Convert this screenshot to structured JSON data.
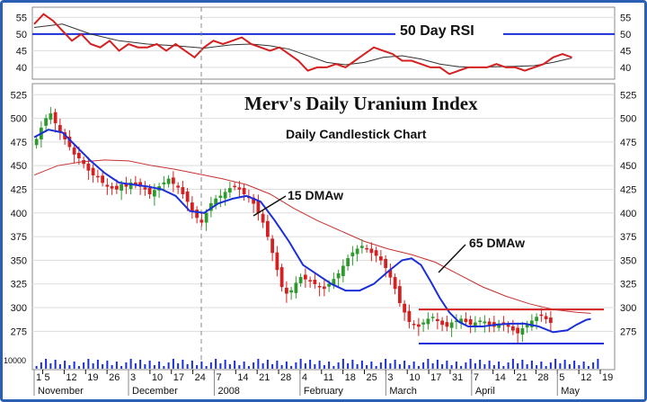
{
  "chart_data": {
    "type": "candlestick",
    "title": "Merv's Daily Uranium Index",
    "subtitle": "Daily Candlestick Chart",
    "colors": {
      "up": "#2e9a2e",
      "down": "#d42020",
      "ma15": "#1a2fd8",
      "ma65": "#c83030",
      "rsi": "#d42020",
      "rsi_signal": "#333333",
      "level_line": "#1a2fd8",
      "frame": "#2b5fb4"
    },
    "rsi_panel": {
      "title": "50 Day RSI",
      "ylim": [
        37,
        57
      ],
      "y_ticks": [
        40,
        45,
        50,
        55
      ],
      "reference_level": 50,
      "rsi": [
        [
          0,
          53
        ],
        [
          2,
          56
        ],
        [
          4,
          54
        ],
        [
          6,
          51
        ],
        [
          8,
          48
        ],
        [
          10,
          50
        ],
        [
          12,
          47
        ],
        [
          14,
          46
        ],
        [
          16,
          48
        ],
        [
          18,
          45
        ],
        [
          20,
          47
        ],
        [
          22,
          46
        ],
        [
          24,
          46
        ],
        [
          26,
          47
        ],
        [
          28,
          45
        ],
        [
          30,
          47
        ],
        [
          32,
          45
        ],
        [
          34,
          43
        ],
        [
          36,
          46
        ],
        [
          38,
          48
        ],
        [
          40,
          47
        ],
        [
          42,
          48
        ],
        [
          44,
          49
        ],
        [
          46,
          47
        ],
        [
          48,
          46
        ],
        [
          50,
          45
        ],
        [
          52,
          46
        ],
        [
          54,
          44
        ],
        [
          56,
          42
        ],
        [
          58,
          39
        ],
        [
          60,
          40
        ],
        [
          62,
          40
        ],
        [
          64,
          41
        ],
        [
          66,
          40
        ],
        [
          68,
          42
        ],
        [
          70,
          44
        ],
        [
          72,
          46
        ],
        [
          74,
          45
        ],
        [
          76,
          44
        ],
        [
          78,
          42
        ],
        [
          80,
          42
        ],
        [
          82,
          41
        ],
        [
          84,
          40
        ],
        [
          86,
          40
        ],
        [
          88,
          38
        ],
        [
          90,
          39
        ],
        [
          92,
          40
        ],
        [
          94,
          40
        ],
        [
          96,
          40
        ],
        [
          98,
          41
        ],
        [
          100,
          40
        ],
        [
          102,
          40
        ],
        [
          104,
          39
        ],
        [
          106,
          40
        ],
        [
          108,
          41
        ],
        [
          110,
          43
        ],
        [
          112,
          44
        ],
        [
          114,
          43
        ]
      ],
      "signal": [
        [
          0,
          52
        ],
        [
          6,
          53
        ],
        [
          12,
          50
        ],
        [
          18,
          48
        ],
        [
          24,
          47
        ],
        [
          30,
          46.5
        ],
        [
          36,
          45.8
        ],
        [
          42,
          46.8
        ],
        [
          46,
          47
        ],
        [
          50,
          46.5
        ],
        [
          54,
          45.5
        ],
        [
          58,
          43.5
        ],
        [
          62,
          41.5
        ],
        [
          66,
          40.8
        ],
        [
          70,
          41.5
        ],
        [
          74,
          43
        ],
        [
          78,
          43.5
        ],
        [
          82,
          42.5
        ],
        [
          86,
          41
        ],
        [
          90,
          40.2
        ],
        [
          94,
          40
        ],
        [
          98,
          40.2
        ],
        [
          102,
          40.3
        ],
        [
          106,
          40.5
        ],
        [
          110,
          41.5
        ],
        [
          114,
          42.8
        ]
      ]
    },
    "price_panel": {
      "ylim": [
        262,
        530
      ],
      "y_ticks": [
        275,
        300,
        325,
        350,
        375,
        400,
        425,
        450,
        475,
        500,
        525
      ],
      "closes": [
        478,
        490,
        500,
        505,
        495,
        485,
        478,
        470,
        462,
        458,
        452,
        445,
        440,
        438,
        432,
        428,
        426,
        425,
        430,
        428,
        432,
        430,
        428,
        425,
        420,
        424,
        428,
        432,
        436,
        431,
        427,
        420,
        412,
        402,
        395,
        390,
        400,
        410,
        415,
        418,
        422,
        426,
        428,
        425,
        420,
        416,
        410,
        400,
        390,
        375,
        358,
        340,
        322,
        315,
        318,
        326,
        332,
        330,
        328,
        325,
        322,
        320,
        325,
        330,
        336,
        344,
        352,
        358,
        362,
        365,
        362,
        358,
        355,
        350,
        342,
        332,
        320,
        305,
        295,
        285,
        282,
        280,
        284,
        288,
        290,
        286,
        282,
        280,
        284,
        286,
        288,
        285,
        282,
        284,
        286,
        285,
        282,
        280,
        283,
        284,
        280,
        276,
        273,
        278,
        282,
        286,
        290,
        292,
        288,
        284
      ],
      "ma15": [
        [
          0,
          480
        ],
        [
          3,
          488
        ],
        [
          6,
          485
        ],
        [
          9,
          470
        ],
        [
          12,
          455
        ],
        [
          15,
          442
        ],
        [
          18,
          432
        ],
        [
          21,
          430
        ],
        [
          24,
          428
        ],
        [
          27,
          425
        ],
        [
          30,
          418
        ],
        [
          33,
          402
        ],
        [
          36,
          400
        ],
        [
          39,
          410
        ],
        [
          42,
          415
        ],
        [
          45,
          418
        ],
        [
          48,
          412
        ],
        [
          51,
          392
        ],
        [
          54,
          370
        ],
        [
          57,
          345
        ],
        [
          60,
          335
        ],
        [
          63,
          325
        ],
        [
          66,
          318
        ],
        [
          69,
          318
        ],
        [
          72,
          325
        ],
        [
          75,
          338
        ],
        [
          78,
          350
        ],
        [
          80,
          352
        ],
        [
          82,
          345
        ],
        [
          84,
          328
        ],
        [
          86,
          310
        ],
        [
          88,
          295
        ],
        [
          90,
          285
        ],
        [
          92,
          280
        ],
        [
          95,
          280
        ],
        [
          98,
          282
        ],
        [
          101,
          283
        ],
        [
          104,
          283
        ],
        [
          107,
          280
        ],
        [
          110,
          274
        ],
        [
          113,
          276
        ],
        [
          115,
          282
        ],
        [
          117,
          287
        ],
        [
          118,
          288
        ]
      ],
      "ma65": [
        [
          0,
          440
        ],
        [
          5,
          450
        ],
        [
          10,
          454
        ],
        [
          15,
          456
        ],
        [
          20,
          455
        ],
        [
          25,
          450
        ],
        [
          30,
          446
        ],
        [
          35,
          441
        ],
        [
          40,
          436
        ],
        [
          45,
          430
        ],
        [
          50,
          420
        ],
        [
          55,
          405
        ],
        [
          60,
          392
        ],
        [
          65,
          381
        ],
        [
          70,
          370
        ],
        [
          75,
          362
        ],
        [
          80,
          356
        ],
        [
          85,
          348
        ],
        [
          90,
          335
        ],
        [
          95,
          322
        ],
        [
          100,
          312
        ],
        [
          105,
          304
        ],
        [
          110,
          298
        ],
        [
          115,
          295
        ],
        [
          118,
          294
        ]
      ],
      "resistance_level": 298,
      "support_level": 262,
      "annotations": [
        "15 DMAw",
        "65 DMAw"
      ]
    },
    "x_axis": {
      "day_labels": [
        "1",
        "5",
        "12",
        "19",
        "26",
        "3",
        "10",
        "17",
        "24",
        "7",
        "14",
        "21",
        "28",
        "4",
        "11",
        "18",
        "25",
        "3",
        "10",
        "17",
        "31",
        "7",
        "14",
        "21",
        "28",
        "5",
        "12",
        "19"
      ],
      "month_labels": [
        "November",
        "December",
        "2008",
        "February",
        "March",
        "April",
        "May"
      ]
    },
    "volume_axis_label": "10000"
  }
}
